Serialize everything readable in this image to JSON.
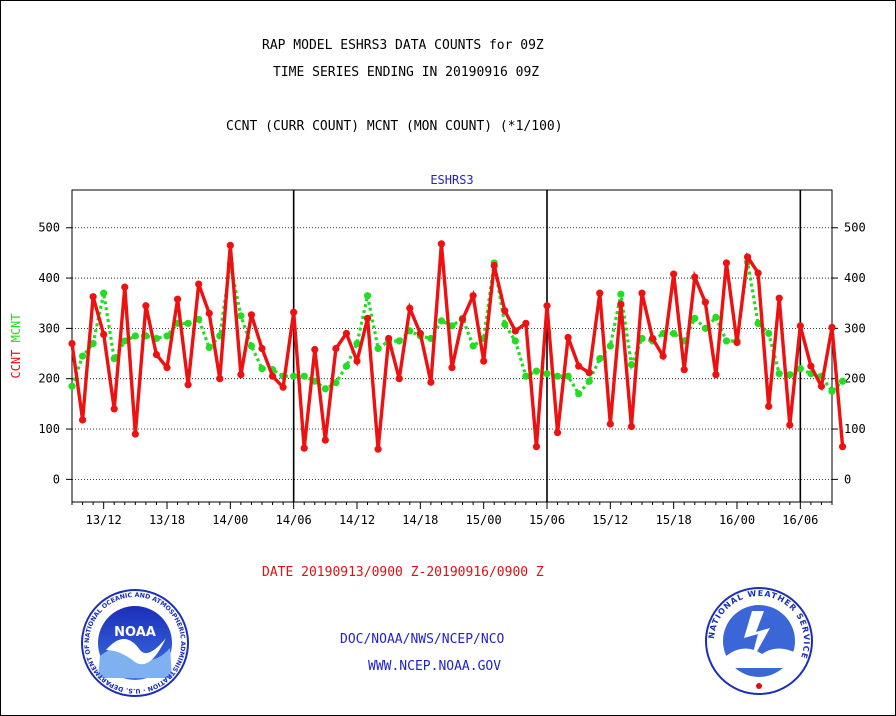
{
  "header": {
    "line1": "RAP MODEL ESHRS3 DATA COUNTS for 09Z",
    "line2": "TIME SERIES ENDING IN 20190916 09Z",
    "line3": "CCNT (CURR COUNT) MCNT (MON COUNT) (*1/100)"
  },
  "footer": {
    "date_range": "DATE 20190913/0900 Z-20190916/0900 Z",
    "org": "DOC/NOAA/NWS/NCEP/NCO",
    "url": "WWW.NCEP.NOAA.GOV"
  },
  "logos": {
    "left": {
      "inner_text": "NOAA",
      "ring_text": "NATIONAL OCEANIC AND ATMOSPHERIC ADMINISTRATION · U.S. DEPARTMENT OF COMMERCE"
    },
    "right": {
      "ring_text": "NATIONAL WEATHER SERVICE"
    }
  },
  "colors": {
    "ccnt": "#ee1111",
    "mcnt": "#22dd22",
    "label_blue": "#2222cc",
    "footer_red": "#dd1111"
  },
  "chart_data": {
    "type": "line",
    "title": "ESHRS3",
    "ylabel_left": [
      "CCNT",
      "MCNT"
    ],
    "ylim": [
      -45,
      575
    ],
    "yticks": [
      0,
      100,
      200,
      300,
      400,
      500
    ],
    "xlim": [
      0,
      72
    ],
    "xticks": [
      {
        "x": 3,
        "label": "13/12"
      },
      {
        "x": 9,
        "label": "13/18"
      },
      {
        "x": 15,
        "label": "14/00"
      },
      {
        "x": 21,
        "label": "14/06"
      },
      {
        "x": 27,
        "label": "14/12"
      },
      {
        "x": 33,
        "label": "14/18"
      },
      {
        "x": 39,
        "label": "15/00"
      },
      {
        "x": 45,
        "label": "15/06"
      },
      {
        "x": 51,
        "label": "15/12"
      },
      {
        "x": 57,
        "label": "15/18"
      },
      {
        "x": 63,
        "label": "16/00"
      },
      {
        "x": 69,
        "label": "16/06"
      }
    ],
    "day_lines": [
      21,
      45,
      69
    ],
    "grid": true,
    "series": [
      {
        "name": "CCNT",
        "color": "#ee1111",
        "values": [
          270,
          118,
          363,
          288,
          140,
          382,
          90,
          345,
          248,
          222,
          358,
          188,
          388,
          330,
          200,
          465,
          208,
          327,
          260,
          205,
          183,
          332,
          62,
          258,
          78,
          260,
          290,
          235,
          320,
          60,
          280,
          200,
          340,
          290,
          193,
          468,
          222,
          318,
          365,
          235,
          425,
          335,
          295,
          310,
          65,
          345,
          93,
          282,
          225,
          212,
          370,
          110,
          348,
          105,
          370,
          280,
          245,
          408,
          218,
          402,
          352,
          208,
          430,
          272,
          442,
          410,
          145,
          360,
          108,
          305,
          225,
          185,
          302,
          65
        ]
      },
      {
        "name": "MCNT",
        "color": "#22dd22",
        "values": [
          185,
          245,
          270,
          370,
          240,
          275,
          285,
          285,
          280,
          285,
          310,
          310,
          318,
          262,
          285,
          428,
          325,
          265,
          220,
          218,
          205,
          205,
          205,
          195,
          180,
          192,
          225,
          270,
          365,
          260,
          275,
          275,
          295,
          285,
          280,
          315,
          305,
          320,
          265,
          280,
          430,
          308,
          275,
          205,
          215,
          210,
          205,
          205,
          170,
          195,
          240,
          265,
          368,
          228,
          280,
          275,
          290,
          290,
          275,
          320,
          300,
          322,
          275,
          275,
          432,
          310,
          290,
          210,
          208,
          220,
          210,
          205,
          175,
          195
        ]
      }
    ]
  }
}
